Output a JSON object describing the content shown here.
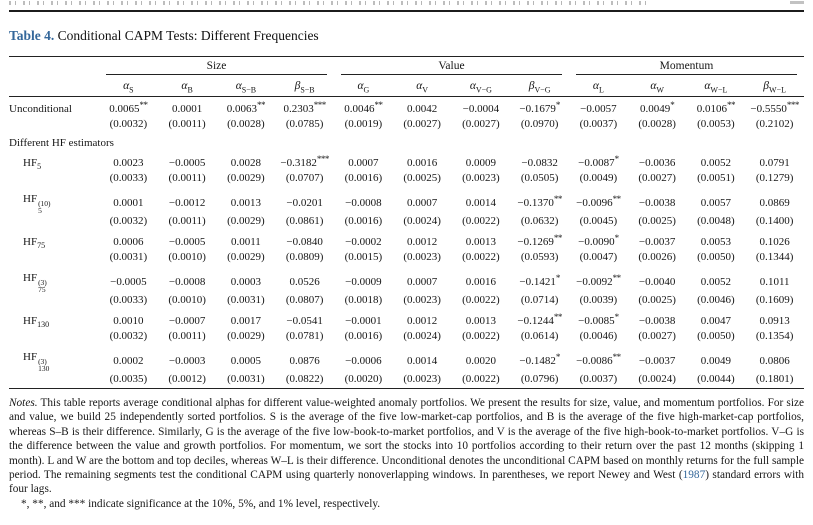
{
  "page": {
    "title_label": "Table 4.",
    "title_text": "Conditional CAPM Tests: Different Frequencies",
    "accent_color": "#34679a"
  },
  "table": {
    "groups": [
      {
        "label": "Size"
      },
      {
        "label": "Value"
      },
      {
        "label": "Momentum"
      }
    ],
    "columns": [
      {
        "letter": "α",
        "sub": "S"
      },
      {
        "letter": "α",
        "sub": "B"
      },
      {
        "letter": "α",
        "sub": "S−B"
      },
      {
        "letter": "β",
        "sub": "S−B"
      },
      {
        "letter": "α",
        "sub": "G"
      },
      {
        "letter": "α",
        "sub": "V"
      },
      {
        "letter": "α",
        "sub": "V−G"
      },
      {
        "letter": "β",
        "sub": "V−G"
      },
      {
        "letter": "α",
        "sub": "L"
      },
      {
        "letter": "α",
        "sub": "W"
      },
      {
        "letter": "α",
        "sub": "W−L"
      },
      {
        "letter": "β",
        "sub": "W−L"
      }
    ],
    "rows": [
      {
        "label": "Unconditional",
        "indent": false,
        "values": [
          "0.0065**",
          "0.0001",
          "0.0063**",
          "0.2303***",
          "0.0046**",
          "0.0042",
          "−0.0004",
          "−0.1679*",
          "−0.0057",
          "0.0049*",
          "0.0106**",
          "−0.5550***"
        ],
        "ses": [
          "(0.0032)",
          "(0.0011)",
          "(0.0028)",
          "(0.0785)",
          "(0.0019)",
          "(0.0027)",
          "(0.0027)",
          "(0.0970)",
          "(0.0037)",
          "(0.0028)",
          "(0.0053)",
          "(0.2102)"
        ]
      },
      {
        "section": "Different HF estimators"
      },
      {
        "label": "HF",
        "sub": "5",
        "indent": true,
        "values": [
          "0.0023",
          "−0.0005",
          "0.0028",
          "−0.3182***",
          "0.0007",
          "0.0016",
          "0.0009",
          "−0.0832",
          "−0.0087*",
          "−0.0036",
          "0.0052",
          "0.0791"
        ],
        "ses": [
          "(0.0033)",
          "(0.0011)",
          "(0.0029)",
          "(0.0707)",
          "(0.0016)",
          "(0.0025)",
          "(0.0023)",
          "(0.0505)",
          "(0.0049)",
          "(0.0027)",
          "(0.0051)",
          "(0.1279)"
        ]
      },
      {
        "label": "HF",
        "sub": "5",
        "sup": "(10)",
        "indent": true,
        "values": [
          "0.0001",
          "−0.0012",
          "0.0013",
          "−0.0201",
          "−0.0008",
          "0.0007",
          "0.0014",
          "−0.1370**",
          "−0.0096**",
          "−0.0038",
          "0.0057",
          "0.0869"
        ],
        "ses": [
          "(0.0032)",
          "(0.0011)",
          "(0.0029)",
          "(0.0861)",
          "(0.0016)",
          "(0.0024)",
          "(0.0022)",
          "(0.0632)",
          "(0.0045)",
          "(0.0025)",
          "(0.0048)",
          "(0.1400)"
        ]
      },
      {
        "label": "HF",
        "sub": "75",
        "indent": true,
        "values": [
          "0.0006",
          "−0.0005",
          "0.0011",
          "−0.0840",
          "−0.0002",
          "0.0012",
          "0.0013",
          "−0.1269**",
          "−0.0090*",
          "−0.0037",
          "0.0053",
          "0.1026"
        ],
        "ses": [
          "(0.0031)",
          "(0.0010)",
          "(0.0029)",
          "(0.0809)",
          "(0.0015)",
          "(0.0023)",
          "(0.0022)",
          "(0.0593)",
          "(0.0047)",
          "(0.0026)",
          "(0.0050)",
          "(0.1344)"
        ]
      },
      {
        "label": "HF",
        "sub": "75",
        "sup": "(3)",
        "indent": true,
        "values": [
          "−0.0005",
          "−0.0008",
          "0.0003",
          "0.0526",
          "−0.0009",
          "0.0007",
          "0.0016",
          "−0.1421*",
          "−0.0092**",
          "−0.0040",
          "0.0052",
          "0.1011"
        ],
        "ses": [
          "(0.0033)",
          "(0.0010)",
          "(0.0031)",
          "(0.0807)",
          "(0.0018)",
          "(0.0023)",
          "(0.0022)",
          "(0.0714)",
          "(0.0039)",
          "(0.0025)",
          "(0.0046)",
          "(0.1609)"
        ]
      },
      {
        "label": "HF",
        "sub": "130",
        "indent": true,
        "values": [
          "0.0010",
          "−0.0007",
          "0.0017",
          "−0.0541",
          "−0.0001",
          "0.0012",
          "0.0013",
          "−0.1244**",
          "−0.0085*",
          "−0.0038",
          "0.0047",
          "0.0913"
        ],
        "ses": [
          "(0.0032)",
          "(0.0011)",
          "(0.0029)",
          "(0.0781)",
          "(0.0016)",
          "(0.0024)",
          "(0.0022)",
          "(0.0614)",
          "(0.0046)",
          "(0.0027)",
          "(0.0050)",
          "(0.1354)"
        ]
      },
      {
        "label": "HF",
        "sub": "130",
        "sup": "(3)",
        "indent": true,
        "values": [
          "0.0002",
          "−0.0003",
          "0.0005",
          "0.0876",
          "−0.0006",
          "0.0014",
          "0.0020",
          "−0.1482*",
          "−0.0086**",
          "−0.0037",
          "0.0049",
          "0.0806"
        ],
        "ses": [
          "(0.0035)",
          "(0.0012)",
          "(0.0031)",
          "(0.0822)",
          "(0.0020)",
          "(0.0023)",
          "(0.0022)",
          "(0.0796)",
          "(0.0037)",
          "(0.0024)",
          "(0.0044)",
          "(0.1801)"
        ]
      }
    ]
  },
  "notes": {
    "lead": "Notes.",
    "text_before_year": "This table reports average conditional alphas for different value-weighted anomaly portfolios. We present the results for size, value, and momentum portfolios. For size and value, we build 25 independently sorted portfolios. S is the average of the five low-market-cap portfolios, and B is the average of the five high-market-cap portfolios, whereas S–B is their difference. Similarly, G is the average of the five low-book-to-market portfolios, and V is the average of the five high-book-to-market portfolios. V–G is the difference between the value and growth portfolios. For momentum, we sort the stocks into 10 portfolios according to their return over the past 12 months (skipping 1 month). L and W are the bottom and top deciles, whereas W–L is their difference. Unconditional denotes the unconditional CAPM based on monthly returns for the full sample period. The remaining segments test the conditional CAPM using quarterly nonoverlapping windows. In parentheses, we report Newey and West (",
    "year": "1987",
    "text_after_year": ") standard errors with four lags.",
    "significance": "*, **, and *** indicate significance at the 10%, 5%, and 1% level, respectively."
  }
}
